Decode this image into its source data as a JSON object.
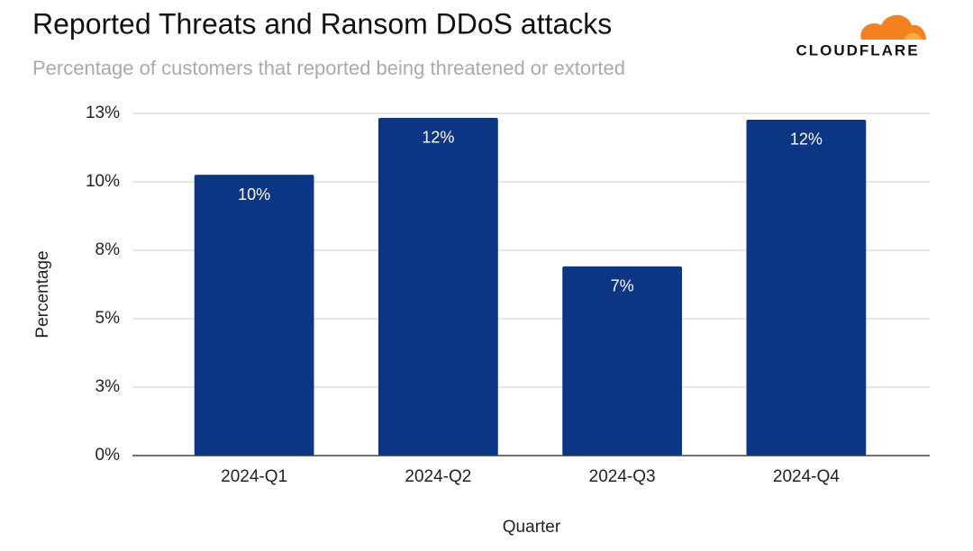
{
  "logo": "CLOUDFLARE",
  "chart_data": {
    "type": "bar",
    "title": "Reported Threats and Ransom DDoS attacks",
    "subtitle": "Percentage of customers that reported being threatened or extorted",
    "x_label": "Quarter",
    "y_label": "Percentage",
    "categories": [
      "2024-Q1",
      "2024-Q2",
      "2024-Q3",
      "2024-Q4"
    ],
    "values": [
      10.26,
      12.34,
      6.91,
      12.27
    ],
    "value_labels": [
      "10%",
      "12%",
      "7%",
      "12%"
    ],
    "color": "#0c3683",
    "ylim": [
      0,
      12.5
    ],
    "yticks": [
      {
        "value": 0,
        "label": "0%"
      },
      {
        "value": 2.5,
        "label": "3%"
      },
      {
        "value": 5,
        "label": "5%"
      },
      {
        "value": 7.5,
        "label": "8%"
      },
      {
        "value": 10,
        "label": "10%"
      },
      {
        "value": 12.5,
        "label": "13%"
      }
    ],
    "grid": true
  }
}
